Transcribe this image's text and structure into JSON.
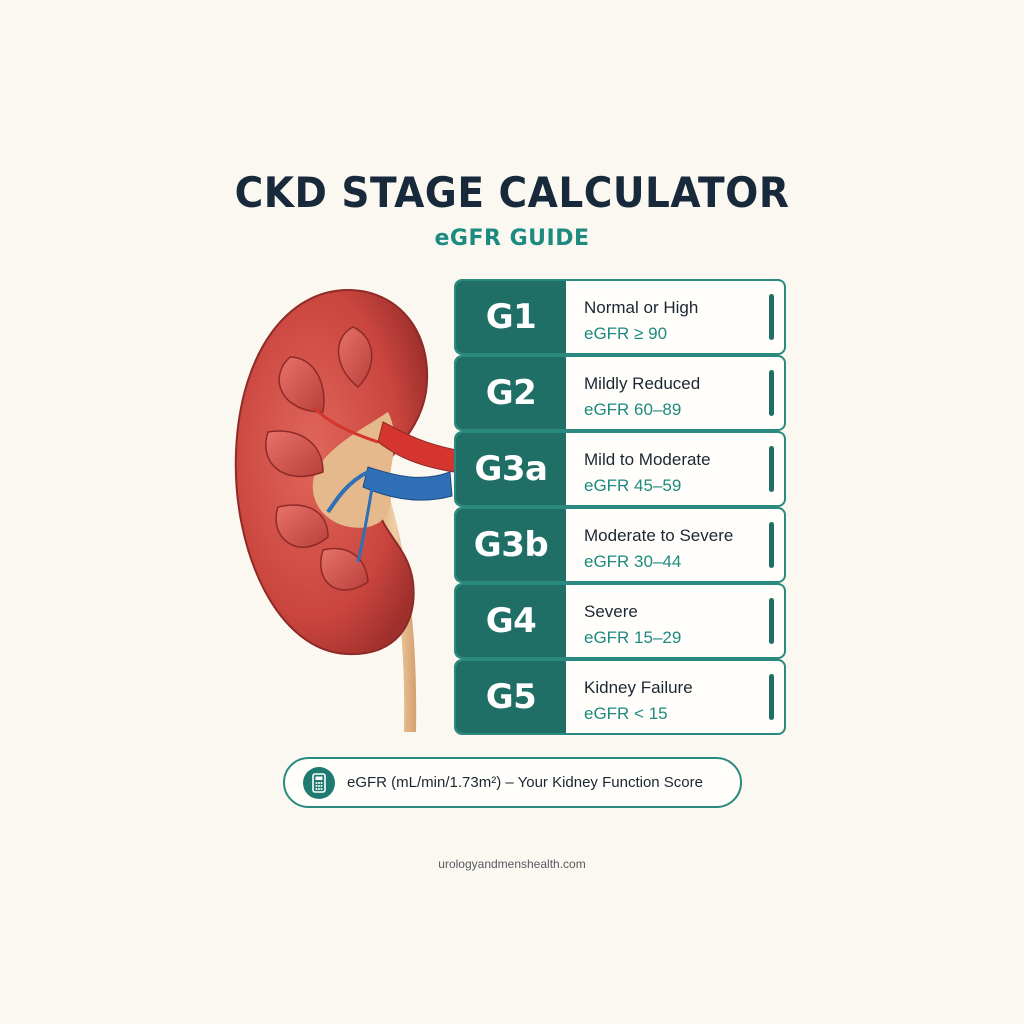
{
  "header": {
    "title": "CKD STAGE CALCULATOR",
    "subtitle": "eGFR GUIDE"
  },
  "stages": [
    {
      "code": "G1",
      "description": "Normal or High",
      "range": "eGFR ≥ 90"
    },
    {
      "code": "G2",
      "description": "Mildly Reduced",
      "range": "eGFR 60–89"
    },
    {
      "code": "G3a",
      "description": "Mild to Moderate",
      "range": "eGFR 45–59"
    },
    {
      "code": "G3b",
      "description": "Moderate to Severe",
      "range": "eGFR 30–44"
    },
    {
      "code": "G4",
      "description": "Severe",
      "range": "eGFR 15–29"
    },
    {
      "code": "G5",
      "description": "Kidney Failure",
      "range": "eGFR < 15"
    }
  ],
  "footer": {
    "icon": "calculator-icon",
    "text": "eGFR (mL/min/1.73m²) – Your Kidney Function Score",
    "website": "urologyandmenshealth.com"
  },
  "colors": {
    "background": "#fbf8f1",
    "accent_teal": "#1f6f67",
    "text_teal": "#1d8a80",
    "title_navy": "#17293a",
    "kidney_red": "#c9453e",
    "vein_blue": "#2f6fb5",
    "ureter_tan": "#e2b88a"
  }
}
